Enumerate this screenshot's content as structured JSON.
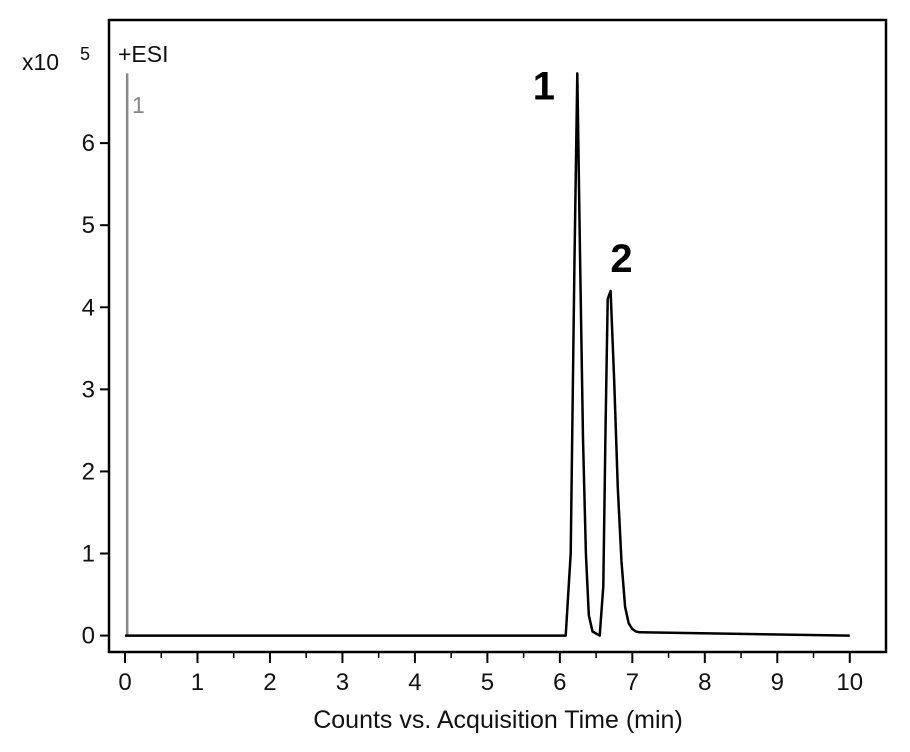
{
  "chart_data": {
    "type": "line",
    "multiplier_label": "x10",
    "multiplier_exponent": "5",
    "ion_mode": "+ESI",
    "trace_label": "1",
    "xlabel": "Counts vs. Acquisition Time (min)",
    "ylabel": "",
    "xlim": [
      0,
      10.5
    ],
    "ylim": [
      -0.2,
      7.5
    ],
    "xticks": [
      "0",
      "1",
      "2",
      "3",
      "4",
      "5",
      "6",
      "7",
      "8",
      "9",
      "10"
    ],
    "yticks": [
      "0",
      "1",
      "2",
      "3",
      "4",
      "5",
      "6"
    ],
    "grid": false,
    "series": [
      {
        "color": "#000000",
        "x": [
          0,
          6.08,
          6.15,
          6.2,
          6.24,
          6.28,
          6.32,
          6.36,
          6.4,
          6.45,
          6.55,
          6.6,
          6.63,
          6.66,
          6.7,
          6.75,
          6.8,
          6.85,
          6.9,
          6.95,
          7.0,
          7.05,
          7.1,
          10
        ],
        "y": [
          0,
          0,
          1.0,
          4.5,
          6.85,
          4.5,
          2.4,
          1.0,
          0.25,
          0.05,
          0,
          0.6,
          2.5,
          4.1,
          4.2,
          3.1,
          1.8,
          0.9,
          0.35,
          0.15,
          0.08,
          0.05,
          0.04,
          0
        ]
      }
    ],
    "solvent_front_line": {
      "x": 0.03,
      "y_top": 6.85,
      "color": "#888888"
    },
    "annotations": [
      {
        "text": "1",
        "x": 5.78,
        "y": 6.7
      },
      {
        "text": "2",
        "x": 6.85,
        "y": 4.6
      }
    ]
  }
}
